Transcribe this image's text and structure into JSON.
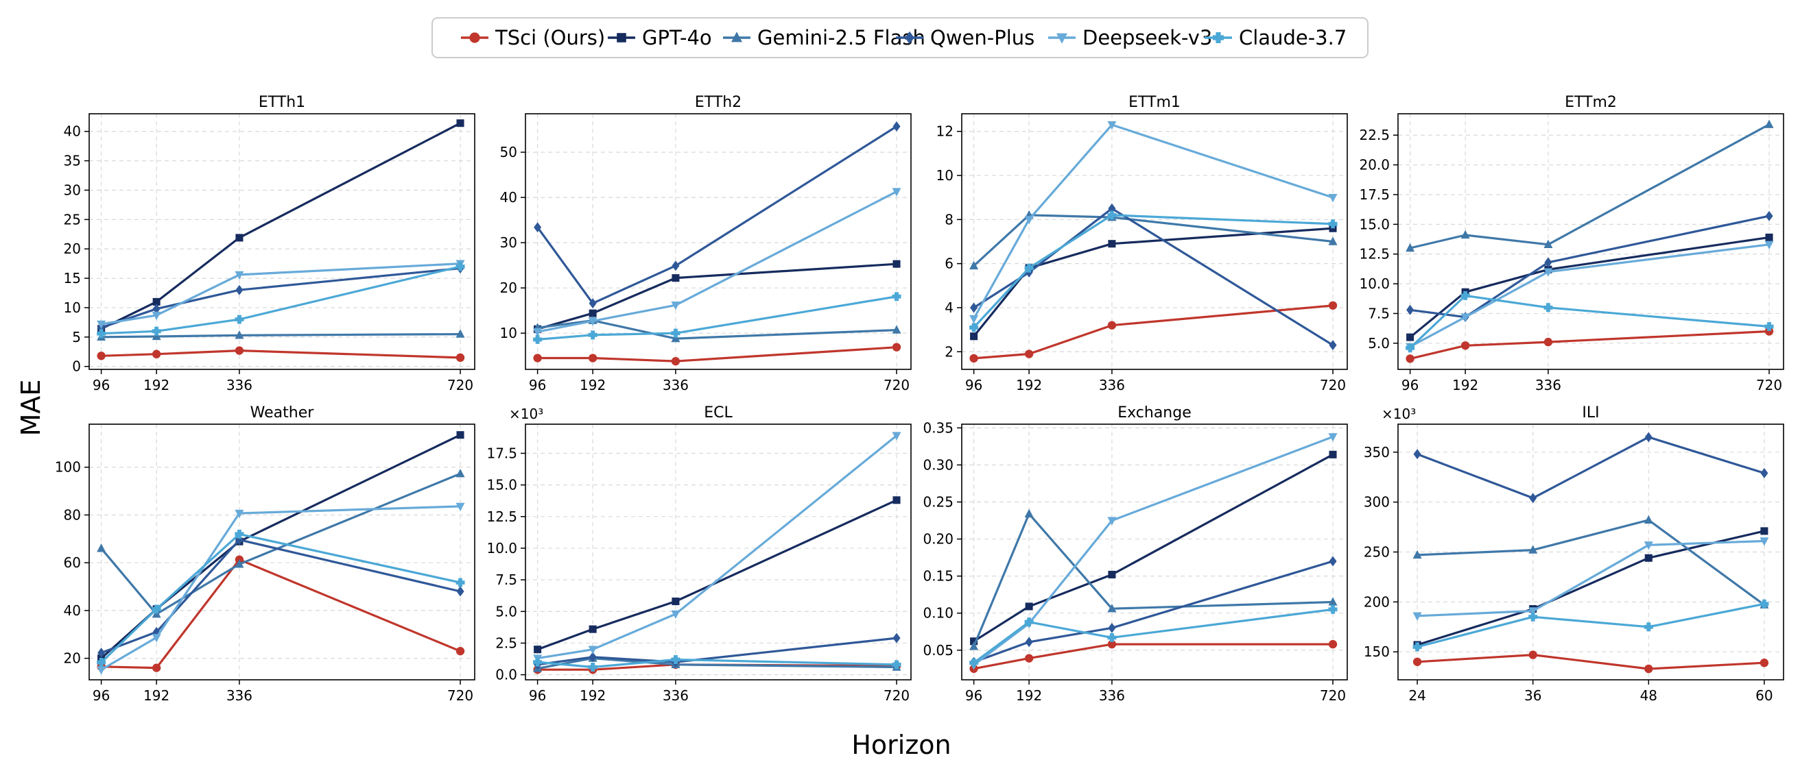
{
  "ylabel": "MAE",
  "xlabel": "Horizon",
  "legend": [
    {
      "name": "TSci (Ours)",
      "color": "#c0362c",
      "marker": "circle"
    },
    {
      "name": "GPT-4o",
      "color": "#162b5e",
      "marker": "square"
    },
    {
      "name": "Gemini-2.5 Flash",
      "color": "#3f78a8",
      "marker": "triangle-up"
    },
    {
      "name": "Qwen-Plus",
      "color": "#2f5898",
      "marker": "diamond"
    },
    {
      "name": "Deepseek-v3",
      "color": "#67aad9",
      "marker": "triangle-down"
    },
    {
      "name": "Claude-3.7",
      "color": "#4ba8d6",
      "marker": "plus"
    }
  ],
  "chart_data": [
    {
      "type": "line",
      "title": "ETTh1",
      "x": [
        96,
        192,
        336,
        720
      ],
      "xlim": [
        75,
        745
      ],
      "ylim": [
        -0.5,
        43
      ],
      "yticks": [
        0,
        5,
        10,
        15,
        20,
        25,
        30,
        35,
        40
      ],
      "ytick_labels": [
        "0",
        "5",
        "10",
        "15",
        "20",
        "25",
        "30",
        "35",
        "40"
      ],
      "series": [
        {
          "name": "TSci (Ours)",
          "values": [
            1.8,
            2.1,
            2.7,
            1.5
          ]
        },
        {
          "name": "GPT-4o",
          "values": [
            6.4,
            11.0,
            21.9,
            41.4
          ]
        },
        {
          "name": "Gemini-2.5 Flash",
          "values": [
            5.0,
            5.1,
            5.3,
            5.5
          ]
        },
        {
          "name": "Qwen-Plus",
          "values": [
            6.6,
            9.8,
            13.0,
            16.7
          ]
        },
        {
          "name": "Deepseek-v3",
          "values": [
            7.2,
            8.7,
            15.6,
            17.5
          ]
        },
        {
          "name": "Claude-3.7",
          "values": [
            5.6,
            6.0,
            8.0,
            17.0
          ]
        }
      ]
    },
    {
      "type": "line",
      "title": "ETTh2",
      "x": [
        96,
        192,
        336,
        720
      ],
      "xlim": [
        75,
        745
      ],
      "ylim": [
        2,
        58.5
      ],
      "yticks": [
        10,
        20,
        30,
        40,
        50
      ],
      "ytick_labels": [
        "10",
        "20",
        "30",
        "40",
        "50"
      ],
      "series": [
        {
          "name": "TSci (Ours)",
          "values": [
            4.5,
            4.5,
            3.8,
            6.9
          ]
        },
        {
          "name": "GPT-4o",
          "values": [
            10.9,
            14.4,
            22.2,
            25.3
          ]
        },
        {
          "name": "Gemini-2.5 Flash",
          "values": [
            11.2,
            12.8,
            8.8,
            10.7
          ]
        },
        {
          "name": "Qwen-Plus",
          "values": [
            33.4,
            16.6,
            24.9,
            55.7
          ]
        },
        {
          "name": "Deepseek-v3",
          "values": [
            10.3,
            12.7,
            16.2,
            41.3
          ]
        },
        {
          "name": "Claude-3.7",
          "values": [
            8.6,
            9.6,
            10.0,
            18.1
          ]
        }
      ]
    },
    {
      "type": "line",
      "title": "ETTm1",
      "x": [
        96,
        192,
        336,
        720
      ],
      "xlim": [
        75,
        745
      ],
      "ylim": [
        1.2,
        12.8
      ],
      "yticks": [
        2,
        4,
        6,
        8,
        10,
        12
      ],
      "ytick_labels": [
        "2",
        "4",
        "6",
        "8",
        "10",
        "12"
      ],
      "series": [
        {
          "name": "TSci (Ours)",
          "values": [
            1.7,
            1.9,
            3.2,
            4.1
          ]
        },
        {
          "name": "GPT-4o",
          "values": [
            2.7,
            5.8,
            6.9,
            7.6
          ]
        },
        {
          "name": "Gemini-2.5 Flash",
          "values": [
            5.9,
            8.2,
            8.1,
            7.0
          ]
        },
        {
          "name": "Qwen-Plus",
          "values": [
            4.0,
            5.6,
            8.5,
            2.3
          ]
        },
        {
          "name": "Deepseek-v3",
          "values": [
            3.5,
            8.0,
            12.3,
            9.0
          ]
        },
        {
          "name": "Claude-3.7",
          "values": [
            3.1,
            5.8,
            8.2,
            7.8
          ]
        }
      ]
    },
    {
      "type": "line",
      "title": "ETTm2",
      "x": [
        96,
        192,
        336,
        720
      ],
      "xlim": [
        75,
        745
      ],
      "ylim": [
        2.8,
        24.3
      ],
      "yticks": [
        5,
        7.5,
        10,
        12.5,
        15,
        17.5,
        20,
        22.5
      ],
      "ytick_labels": [
        "5.0",
        "7.5",
        "10.0",
        "12.5",
        "15.0",
        "17.5",
        "20.0",
        "22.5"
      ],
      "series": [
        {
          "name": "TSci (Ours)",
          "values": [
            3.7,
            4.8,
            5.1,
            6.0
          ]
        },
        {
          "name": "GPT-4o",
          "values": [
            5.5,
            9.3,
            11.2,
            13.9
          ]
        },
        {
          "name": "Gemini-2.5 Flash",
          "values": [
            13.0,
            14.1,
            13.3,
            23.4
          ]
        },
        {
          "name": "Qwen-Plus",
          "values": [
            7.8,
            7.2,
            11.8,
            15.7
          ]
        },
        {
          "name": "Deepseek-v3",
          "values": [
            4.7,
            7.2,
            11.0,
            13.3
          ]
        },
        {
          "name": "Claude-3.7",
          "values": [
            4.6,
            9.0,
            8.0,
            6.4
          ]
        }
      ]
    },
    {
      "type": "line",
      "title": "Weather",
      "x": [
        96,
        192,
        336,
        720
      ],
      "xlim": [
        75,
        745
      ],
      "ylim": [
        11,
        118
      ],
      "yticks": [
        20,
        40,
        60,
        80,
        100
      ],
      "ytick_labels": [
        "20",
        "40",
        "60",
        "80",
        "100"
      ],
      "series": [
        {
          "name": "TSci (Ours)",
          "values": [
            16.5,
            16.0,
            61.3,
            23.0
          ]
        },
        {
          "name": "GPT-4o",
          "values": [
            20.0,
            40.6,
            68.9,
            113.5
          ]
        },
        {
          "name": "Gemini-2.5 Flash",
          "values": [
            66.0,
            38.5,
            59.4,
            97.3
          ]
        },
        {
          "name": "Qwen-Plus",
          "values": [
            22.3,
            31.0,
            69.6,
            48.0
          ]
        },
        {
          "name": "Deepseek-v3",
          "values": [
            15.2,
            28.7,
            80.7,
            83.6
          ]
        },
        {
          "name": "Claude-3.7",
          "values": [
            18.3,
            40.6,
            72.0,
            51.7
          ]
        }
      ]
    },
    {
      "type": "line",
      "title": "ECL",
      "multiplier": "×10³",
      "x": [
        96,
        192,
        336,
        720
      ],
      "xlim": [
        75,
        745
      ],
      "ylim": [
        -0.4,
        19.8
      ],
      "yticks": [
        0,
        2.5,
        5,
        7.5,
        10,
        12.5,
        15,
        17.5
      ],
      "ytick_labels": [
        "0.0",
        "2.5",
        "5.0",
        "7.5",
        "10.0",
        "12.5",
        "15.0",
        "17.5"
      ],
      "series": [
        {
          "name": "TSci (Ours)",
          "values": [
            0.4,
            0.4,
            0.8,
            0.7
          ]
        },
        {
          "name": "GPT-4o",
          "values": [
            2.0,
            3.6,
            5.8,
            13.8
          ]
        },
        {
          "name": "Gemini-2.5 Flash",
          "values": [
            0.5,
            1.3,
            0.8,
            0.6
          ]
        },
        {
          "name": "Qwen-Plus",
          "values": [
            0.8,
            1.4,
            1.0,
            2.9
          ]
        },
        {
          "name": "Deepseek-v3",
          "values": [
            1.3,
            2.0,
            4.8,
            18.9
          ]
        },
        {
          "name": "Claude-3.7",
          "values": [
            1.0,
            0.6,
            1.2,
            0.8
          ]
        }
      ]
    },
    {
      "type": "line",
      "title": "Exchange",
      "x": [
        96,
        192,
        336,
        720
      ],
      "xlim": [
        75,
        745
      ],
      "ylim": [
        0.01,
        0.355
      ],
      "yticks": [
        0.05,
        0.1,
        0.15,
        0.2,
        0.25,
        0.3,
        0.35
      ],
      "ytick_labels": [
        "0.05",
        "0.10",
        "0.15",
        "0.20",
        "0.25",
        "0.30",
        "0.35"
      ],
      "series": [
        {
          "name": "TSci (Ours)",
          "values": [
            0.025,
            0.039,
            0.058,
            0.058
          ]
        },
        {
          "name": "GPT-4o",
          "values": [
            0.062,
            0.109,
            0.152,
            0.314
          ]
        },
        {
          "name": "Gemini-2.5 Flash",
          "values": [
            0.055,
            0.234,
            0.106,
            0.115
          ]
        },
        {
          "name": "Qwen-Plus",
          "values": [
            0.034,
            0.061,
            0.08,
            0.17
          ]
        },
        {
          "name": "Deepseek-v3",
          "values": [
            0.03,
            0.086,
            0.225,
            0.338
          ]
        },
        {
          "name": "Claude-3.7",
          "values": [
            0.033,
            0.088,
            0.067,
            0.105
          ]
        }
      ]
    },
    {
      "type": "line",
      "title": "ILI",
      "multiplier": "×10³",
      "x": [
        24,
        36,
        48,
        60
      ],
      "xlim": [
        22,
        62
      ],
      "ylim": [
        122,
        378
      ],
      "yticks": [
        150,
        200,
        250,
        300,
        350
      ],
      "ytick_labels": [
        "150",
        "200",
        "250",
        "300",
        "350"
      ],
      "series": [
        {
          "name": "TSci (Ours)",
          "values": [
            140,
            147,
            133,
            139
          ]
        },
        {
          "name": "GPT-4o",
          "values": [
            157,
            193,
            244,
            271
          ]
        },
        {
          "name": "Gemini-2.5 Flash",
          "values": [
            247,
            252,
            282,
            197
          ]
        },
        {
          "name": "Qwen-Plus",
          "values": [
            348,
            304,
            365,
            329
          ]
        },
        {
          "name": "Deepseek-v3",
          "values": [
            186,
            191,
            257,
            261
          ]
        },
        {
          "name": "Claude-3.7",
          "values": [
            155,
            185,
            175,
            198
          ]
        }
      ]
    }
  ]
}
